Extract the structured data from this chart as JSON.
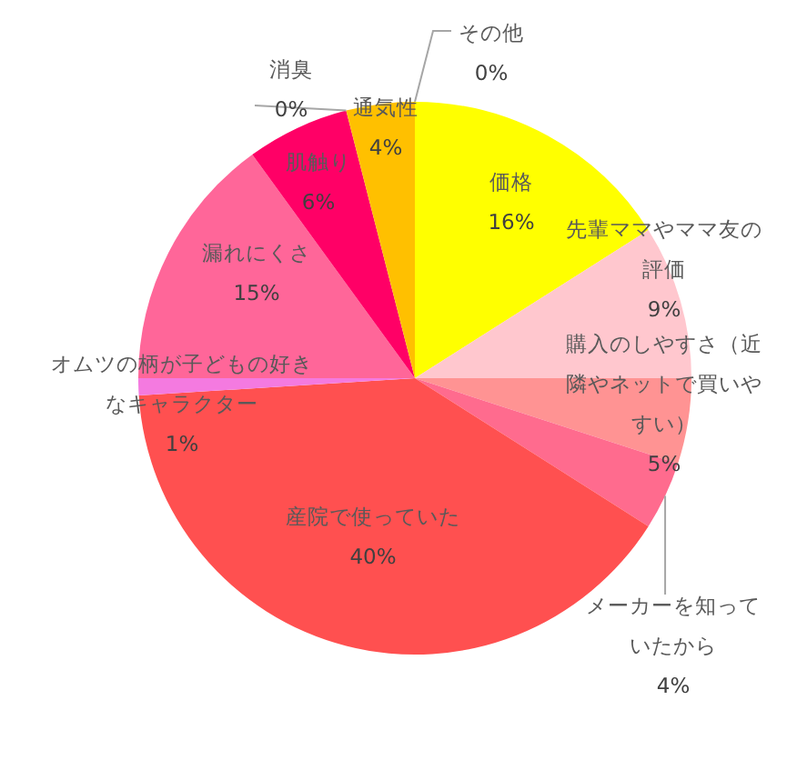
{
  "chart_data": {
    "type": "pie",
    "categories": [
      "価格",
      "先輩ママやママ友の評価",
      "購入のしやすさ（近隣やネットで買いやすい）",
      "メーカーを知っていたから",
      "産院で使っていた",
      "オムツの柄が子どもの好きなキャラクター",
      "漏れにくさ",
      "肌触り",
      "消臭",
      "通気性",
      "その他"
    ],
    "values": [
      16,
      9,
      5,
      4,
      40,
      1,
      15,
      6,
      0,
      4,
      0
    ],
    "colors": [
      "#ffff00",
      "#ffc7ce",
      "#ff9393",
      "#ff6b8e",
      "#ff5050",
      "#f47ae0",
      "#ff6699",
      "#ff0066",
      "#cc0066",
      "#ffc000",
      "#ff9900"
    ],
    "value_labels": [
      "16%",
      "9%",
      "5%",
      "4%",
      "40%",
      "1%",
      "15%",
      "6%",
      "0%",
      "4%",
      "0%"
    ],
    "data_labels": true,
    "legend": false
  }
}
